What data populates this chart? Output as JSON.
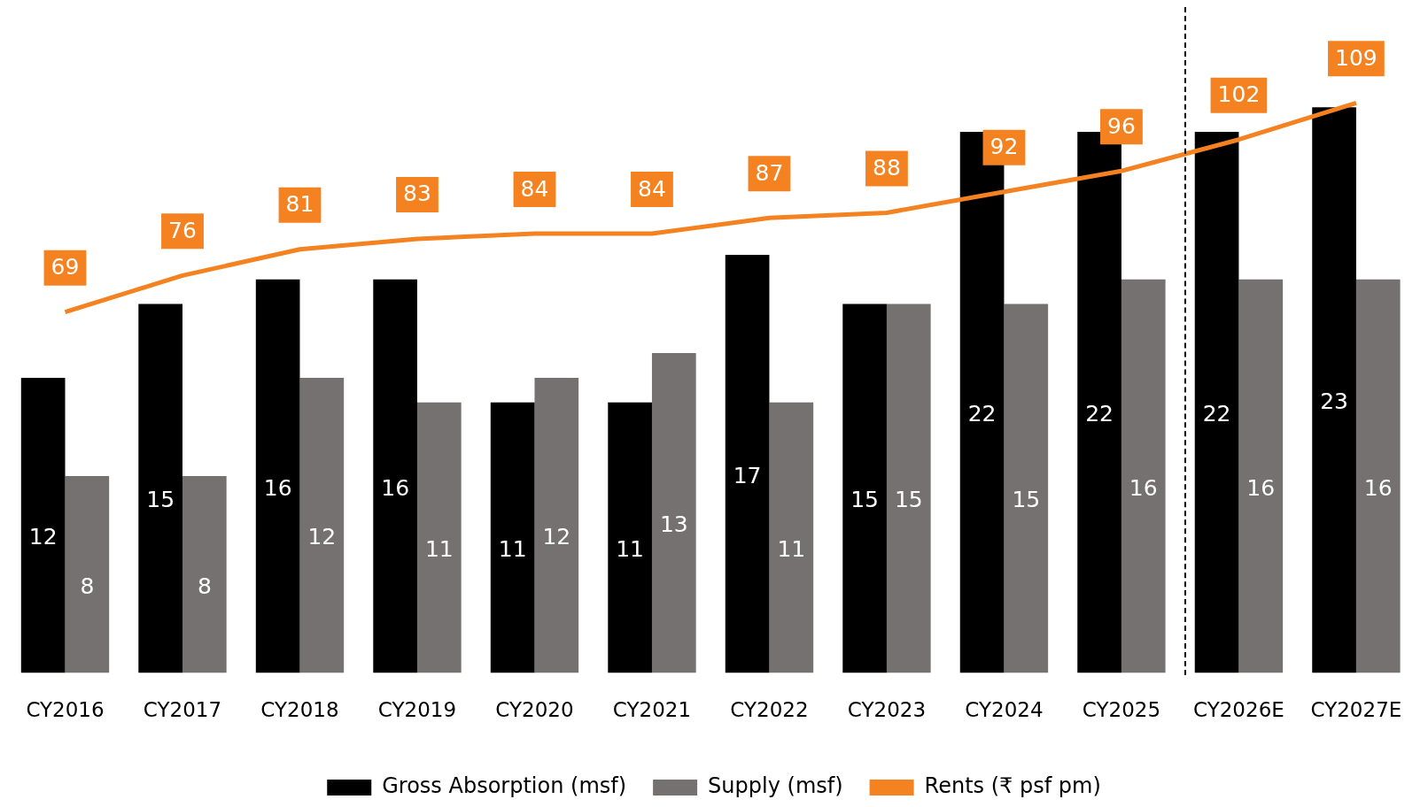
{
  "chart_data": {
    "type": "bar",
    "categories": [
      "CY2016",
      "CY2017",
      "CY2018",
      "CY2019",
      "CY2020",
      "CY2021",
      "CY2022",
      "CY2023",
      "CY2024",
      "CY2025",
      "CY2026E",
      "CY2027E"
    ],
    "series": [
      {
        "name": "Gross Absorption (msf)",
        "color": "#000000",
        "values": [
          12,
          15,
          16,
          16,
          11,
          11,
          17,
          15,
          22,
          22,
          22,
          23
        ]
      },
      {
        "name": "Supply (msf)",
        "color": "#767171",
        "values": [
          8,
          8,
          12,
          11,
          12,
          13,
          11,
          15,
          15,
          16,
          16,
          16
        ]
      },
      {
        "name": "Rents (₹ psf pm)",
        "type": "line",
        "axis": "y2",
        "color": "#f58220",
        "values": [
          69,
          76,
          81,
          83,
          84,
          84,
          87,
          88,
          92,
          96,
          102,
          109
        ]
      }
    ],
    "ylim": [
      0,
      27
    ],
    "y2lim": [
      0,
      127
    ],
    "tick_labels": "x",
    "grid": false,
    "legend": "bottom",
    "data_labels": true,
    "marker": "none"
  }
}
